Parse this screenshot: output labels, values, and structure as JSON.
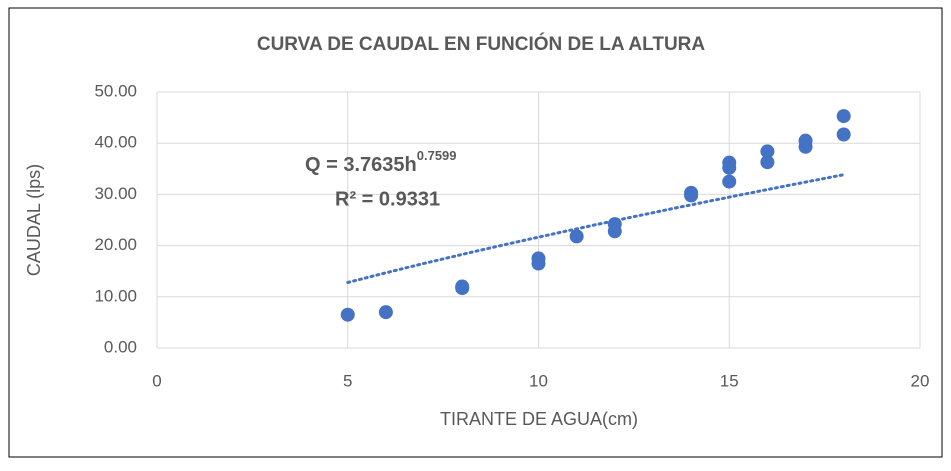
{
  "chart_data": {
    "type": "scatter",
    "title": "CURVA DE CAUDAL EN FUNCIÓN DE LA ALTURA",
    "x_label": "TIRANTE DE AGUA(cm)",
    "y_label": "CAUDAL (lps)",
    "series": [
      {
        "name": "CAUDAL",
        "color": "#4472c4",
        "x": [
          5,
          6,
          8,
          8,
          10,
          10,
          11,
          12,
          12,
          14,
          14,
          15,
          15,
          15,
          16,
          16,
          17,
          17,
          18,
          18
        ],
        "values": [
          6.5,
          7.0,
          11.7,
          12.0,
          16.5,
          17.5,
          21.8,
          22.8,
          24.2,
          29.8,
          30.3,
          32.5,
          35.2,
          36.2,
          36.3,
          38.4,
          39.3,
          40.5,
          41.7,
          45.3
        ]
      }
    ],
    "trendline": {
      "coefficient": 3.7635,
      "exponent": 0.7599,
      "label": "Q = 3.7635h",
      "label_exponent": "0.7599",
      "r2_label": "R² = 0.9331"
    },
    "xlim": [
      0,
      20
    ],
    "xticks": [
      0,
      5,
      10,
      15,
      20
    ],
    "ylim": [
      0,
      50
    ],
    "yticks": [
      {
        "value": 0,
        "label": "0.00"
      },
      {
        "value": 10,
        "label": "10.00"
      },
      {
        "value": 20,
        "label": "20.00"
      },
      {
        "value": 30,
        "label": "30.00"
      },
      {
        "value": 40,
        "label": "40.00"
      },
      {
        "value": 50,
        "label": "50.00"
      }
    ],
    "grid": true
  }
}
